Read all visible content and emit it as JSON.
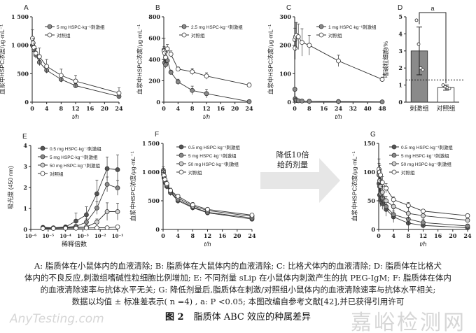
{
  "chart_data": [
    {
      "panel": "A",
      "type": "line",
      "xlabel": "t/h",
      "ylabel": "血浆中HSPC浓度/μg·mL⁻¹",
      "xlim": [
        0,
        24
      ],
      "ylim": [
        0,
        1500
      ],
      "xticks": [
        0,
        4,
        8,
        12,
        16,
        20,
        24
      ],
      "xtick_labels": [
        "0",
        "4",
        "8",
        "12",
        "16",
        "20",
        "24"
      ],
      "yticks": [
        0,
        500,
        1000,
        1500
      ],
      "ytick_labels": [
        "0",
        "500",
        "1 000",
        "1 500"
      ],
      "x": [
        0.083,
        0.25,
        0.5,
        1,
        2,
        4,
        8,
        12,
        24
      ],
      "series": [
        {
          "name": "5 mg HSPC·kg⁻¹刺激组",
          "fill": "#8a8a8a",
          "values": [
            1000,
            980,
            920,
            830,
            700,
            560,
            400,
            290,
            100
          ],
          "errors": [
            80,
            60,
            60,
            60,
            60,
            50,
            50,
            40,
            30
          ]
        },
        {
          "name": "对照组",
          "fill": "#ffffff",
          "values": [
            1120,
            1040,
            960,
            860,
            800,
            630,
            470,
            370,
            160
          ],
          "errors": [
            150,
            80,
            80,
            80,
            150,
            120,
            110,
            100,
            90
          ]
        }
      ]
    },
    {
      "panel": "B",
      "type": "line",
      "xlabel": "t/h",
      "ylabel": "血浆中HSPC浓度/μg·mL⁻¹",
      "xlim": [
        0,
        24
      ],
      "ylim": [
        0,
        800
      ],
      "xticks": [
        0,
        4,
        8,
        12,
        16,
        20,
        24
      ],
      "xtick_labels": [
        "0",
        "4",
        "8",
        "12",
        "16",
        "20",
        "24"
      ],
      "yticks": [
        0,
        200,
        400,
        600,
        800
      ],
      "ytick_labels": [
        "0",
        "200",
        "400",
        "600",
        "800"
      ],
      "x": [
        0.083,
        0.25,
        0.5,
        1,
        2,
        4,
        8,
        12,
        24
      ],
      "series": [
        {
          "name": "2.5 mg HSPC·kg⁻¹刺激组",
          "fill": "#8a8a8a",
          "values": [
            490,
            370,
            350,
            390,
            280,
            190,
            110,
            80,
            5
          ],
          "errors": [
            30,
            30,
            30,
            30,
            20,
            25,
            40,
            40,
            5
          ]
        },
        {
          "name": "对照组",
          "fill": "#ffffff",
          "values": [
            480,
            460,
            420,
            500,
            450,
            310,
            285,
            245,
            160
          ],
          "errors": [
            120,
            40,
            40,
            40,
            30,
            20,
            30,
            30,
            20
          ]
        }
      ]
    },
    {
      "panel": "C",
      "type": "line",
      "xlabel": "t/h",
      "ylabel": "血浆中HSPC浓度/μg·mL⁻¹",
      "xlim": [
        0,
        48
      ],
      "ylim": [
        0,
        300
      ],
      "xticks": [
        0,
        8,
        16,
        24,
        32,
        40,
        48
      ],
      "xtick_labels": [
        "0",
        "8",
        "16",
        "24",
        "32",
        "40",
        "48"
      ],
      "yticks": [
        0,
        100,
        200,
        300
      ],
      "ytick_labels": [
        "0",
        "100",
        "200",
        "300"
      ],
      "x": [
        0.083,
        0.25,
        0.5,
        1,
        2,
        4,
        8,
        24,
        48
      ],
      "series": [
        {
          "name": "1 mg HSPC·kg⁻¹刺激组",
          "fill": "#8a8a8a",
          "values": [
            45,
            12,
            8,
            6,
            5,
            4,
            3,
            2,
            1
          ],
          "errors": [
            5,
            3,
            2,
            2,
            1,
            1,
            1,
            1,
            1
          ]
        },
        {
          "name": "对照组",
          "fill": "#ffffff",
          "values": [
            220,
            190,
            230,
            235,
            230,
            210,
            200,
            145,
            80
          ],
          "errors": [
            40,
            40,
            50,
            45,
            45,
            48,
            35,
            20,
            8
          ]
        }
      ]
    },
    {
      "panel": "D",
      "type": "bar",
      "ylabel": "嗜碱粒细胞/%",
      "ylim": [
        0,
        5
      ],
      "yticks": [
        0,
        1,
        2,
        3,
        4,
        5
      ],
      "ytick_labels": [
        "0",
        "1",
        "2",
        "3",
        "4",
        "5"
      ],
      "categories": [
        "刺激组",
        "对照组"
      ],
      "values": [
        3.0,
        0.85
      ],
      "errors": [
        1.4,
        0.15
      ],
      "bar_fills": [
        "#8a8a8a",
        "#ffffff"
      ],
      "points": [
        [
          4.8,
          3.4,
          2.0,
          1.9
        ],
        [
          1.0,
          0.9,
          0.85,
          0.8
        ]
      ],
      "reference_line": 1.3,
      "significance": "a"
    },
    {
      "panel": "E",
      "type": "line",
      "xlabel": "稀释倍数",
      "ylabel": "吸光度 (450 nm)",
      "xscale": "log",
      "xlim": [
        1e-06,
        0.1
      ],
      "ylim": [
        0,
        4
      ],
      "xticks": [
        1e-06,
        1e-05,
        0.0001,
        0.001,
        0.01,
        0.1
      ],
      "xtick_labels": [
        "10⁻⁶",
        "10⁻⁵",
        "10⁻⁴",
        "10⁻³",
        "10⁻²",
        "10⁻¹"
      ],
      "yticks": [
        0,
        1,
        2,
        3,
        4
      ],
      "ytick_labels": [
        "0",
        "1",
        "2",
        "3",
        "4"
      ],
      "x": [
        5e-06,
        2e-05,
        0.0001,
        0.0004,
        0.0016,
        0.0064,
        0.025,
        0.1
      ],
      "series": [
        {
          "name": "0.5 mg HSPC·kg⁻¹刺激组",
          "fill": "#555555",
          "values": [
            0.1,
            0.08,
            0.12,
            0.4,
            0.7,
            1.7,
            2.9,
            2.85
          ],
          "errors": [
            0.02,
            0.02,
            0.03,
            0.38,
            0.38,
            0.65,
            0.55,
            0.7
          ]
        },
        {
          "name": "5 mg HSPC·kg⁻¹刺激组",
          "fill": "#8a8a8a",
          "values": [
            0.08,
            0.07,
            0.1,
            0.15,
            0.35,
            1.02,
            2.15,
            1.98
          ],
          "errors": [
            0.02,
            0.02,
            0.02,
            0.05,
            0.15,
            0.3,
            0.35,
            0.35
          ]
        },
        {
          "name": "50 mg HSPC·kg⁻¹刺激组",
          "fill": "#d0d0d0",
          "values": [
            0.06,
            0.06,
            0.08,
            0.1,
            0.12,
            0.35,
            0.85,
            0.85
          ],
          "errors": [
            0.01,
            0.01,
            0.01,
            0.02,
            0.03,
            0.15,
            0.42,
            0.4
          ]
        },
        {
          "name": "对照组",
          "fill": "#ffffff",
          "values": [
            0.05,
            0.05,
            0.06,
            0.06,
            0.07,
            0.08,
            0.08,
            0.12
          ],
          "errors": [
            0.01,
            0.01,
            0.01,
            0.01,
            0.01,
            0.01,
            0.01,
            0.02
          ]
        }
      ]
    },
    {
      "panel": "F",
      "type": "line",
      "xlabel": "t/h",
      "ylabel": "血浆中HSPC浓度/μg·mL⁻¹",
      "xlim": [
        0,
        24
      ],
      "ylim": [
        0,
        1500
      ],
      "xticks": [
        0,
        4,
        8,
        12,
        16,
        20,
        24
      ],
      "xtick_labels": [
        "0",
        "4",
        "8",
        "12",
        "16",
        "20",
        "24"
      ],
      "yticks": [
        0,
        500,
        1000,
        1500
      ],
      "ytick_labels": [
        "0",
        "500",
        "1 000",
        "1 500"
      ],
      "x": [
        0.083,
        0.25,
        0.5,
        1,
        2,
        4,
        8,
        12,
        24
      ],
      "series": [
        {
          "name": "0.5 mg HSPC·kg⁻¹刺激组",
          "fill": "#555555",
          "values": [
            1000,
            900,
            820,
            750,
            640,
            500,
            380,
            290,
            180
          ],
          "errors": [
            60,
            50,
            50,
            50,
            50,
            50,
            50,
            30,
            20
          ]
        },
        {
          "name": "5 mg HSPC·kg⁻¹刺激组",
          "fill": "#8a8a8a",
          "values": [
            1030,
            920,
            840,
            760,
            650,
            520,
            390,
            300,
            200
          ],
          "errors": [
            60,
            50,
            50,
            50,
            50,
            40,
            40,
            30,
            20
          ]
        },
        {
          "name": "50 mg HSPC·kg⁻¹刺激组",
          "fill": "#d0d0d0",
          "values": [
            1000,
            930,
            850,
            780,
            670,
            550,
            410,
            330,
            230
          ],
          "errors": [
            60,
            50,
            50,
            50,
            40,
            40,
            40,
            30,
            20
          ]
        },
        {
          "name": "对照组",
          "fill": "#ffffff",
          "values": [
            960,
            940,
            870,
            800,
            680,
            580,
            430,
            350,
            250
          ],
          "errors": [
            60,
            50,
            50,
            50,
            40,
            30,
            40,
            30,
            20
          ]
        }
      ]
    },
    {
      "panel": "G",
      "type": "line",
      "xlabel": "t/h",
      "ylabel": "血浆中HSPC浓度/μg·mL⁻¹",
      "xlim": [
        0,
        24
      ],
      "ylim": [
        0,
        150
      ],
      "xticks": [
        0,
        4,
        8,
        12,
        16,
        20,
        24
      ],
      "xtick_labels": [
        "0",
        "4",
        "8",
        "12",
        "16",
        "20",
        "24"
      ],
      "yticks": [
        0,
        50,
        100,
        150
      ],
      "ytick_labels": [
        "0",
        "50",
        "100",
        "150"
      ],
      "x": [
        0.083,
        0.25,
        0.5,
        1,
        2,
        4,
        8,
        12,
        24
      ],
      "series": [
        {
          "name": "0.5 mg HSPC·kg⁻¹刺激组",
          "fill": "#555555",
          "values": [
            80,
            60,
            52,
            45,
            35,
            22,
            11,
            7,
            3
          ],
          "errors": [
            20,
            15,
            12,
            10,
            12,
            10,
            10,
            5,
            2
          ]
        },
        {
          "name": "5 mg HSPC·kg⁻¹刺激组",
          "fill": "#8a8a8a",
          "values": [
            95,
            75,
            62,
            55,
            40,
            26,
            18,
            12,
            6
          ],
          "errors": [
            20,
            15,
            12,
            10,
            10,
            10,
            10,
            6,
            3
          ]
        },
        {
          "name": "50 mg HSPC·kg⁻¹刺激组",
          "fill": "#d0d0d0",
          "values": [
            100,
            85,
            75,
            65,
            50,
            40,
            28,
            24,
            16
          ],
          "errors": [
            15,
            12,
            10,
            10,
            8,
            8,
            10,
            6,
            3
          ]
        },
        {
          "name": "对照组",
          "fill": "#ffffff",
          "values": [
            105,
            100,
            95,
            82,
            72,
            52,
            42,
            32,
            24
          ],
          "errors": [
            18,
            12,
            10,
            10,
            8,
            5,
            5,
            3,
            3
          ]
        }
      ]
    }
  ],
  "arrow": {
    "line1": "降低10倍",
    "line2": "给药剂量"
  },
  "caption": {
    "lines": [
      "A: 脂质体在小鼠体内的血液清除; B: 脂质体在大鼠体内的血液清除; C: 比格犬体内的血液清除; D: 脂质体在比格犬",
      "体内的不良反应,刺激组嗜碱性粒细胞比例增加; E: 不同剂量 sLip 在小鼠体内刺激产生的抗 PEG-IgM; F: 脂质体在体内",
      "的血液清除速率与抗体水平无关; G: 降低剂量后,脂质体在刺激/对照组小鼠体内的血液清除速率与抗体水平相关;",
      "数据以均值 ± 标准差表示( n =4) , a:  P <0.05; 本图改编自参考文献[42],并已获得引用许可"
    ],
    "figure_number": "图 2",
    "figure_title": "脂质体 ABC 效应的种属差异"
  },
  "watermark": {
    "line1": "嘉峪检测网",
    "line2": "AnyTesting.com"
  }
}
